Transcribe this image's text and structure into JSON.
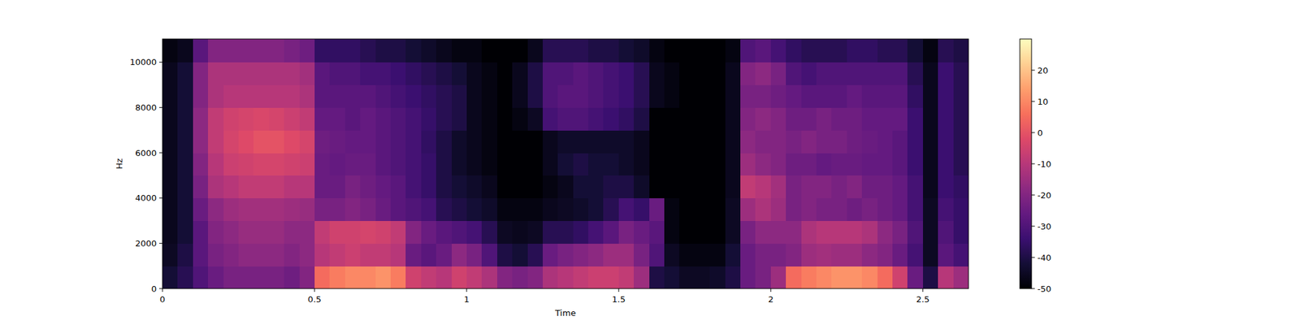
{
  "chart_data": {
    "type": "heatmap",
    "xlabel": "Time",
    "ylabel": "Hz",
    "x": [
      0.025,
      0.075,
      0.125,
      0.175,
      0.225,
      0.275,
      0.325,
      0.375,
      0.425,
      0.475,
      0.525,
      0.575,
      0.625,
      0.675,
      0.725,
      0.775,
      0.825,
      0.875,
      0.925,
      0.975,
      1.025,
      1.075,
      1.125,
      1.175,
      1.225,
      1.275,
      1.325,
      1.375,
      1.425,
      1.475,
      1.525,
      1.575,
      1.625,
      1.675,
      1.725,
      1.775,
      1.825,
      1.875,
      1.925,
      1.975,
      2.025,
      2.075,
      2.125,
      2.175,
      2.225,
      2.275,
      2.325,
      2.375,
      2.425,
      2.475,
      2.525,
      2.575,
      2.625
    ],
    "y": [
      500,
      1500,
      2500,
      3500,
      4500,
      5500,
      6500,
      7500,
      8500,
      9500,
      10500
    ],
    "cells": [
      [
        -42,
        -38,
        -30,
        -25,
        -22,
        -22,
        -22,
        -22,
        -24,
        -20,
        5,
        8,
        10,
        10,
        12,
        8,
        -5,
        -8,
        -10,
        -5,
        -8,
        -12,
        -20,
        -22,
        -20,
        -12,
        -10,
        -8,
        -6,
        -6,
        -8,
        -15,
        -40,
        -42,
        -45,
        -45,
        -44,
        -40,
        -25,
        -22,
        -15,
        5,
        8,
        10,
        12,
        12,
        10,
        5,
        -5,
        -25,
        -40,
        -10,
        -15
      ],
      [
        -45,
        -40,
        -28,
        -22,
        -20,
        -18,
        -18,
        -18,
        -20,
        -18,
        -10,
        -8,
        -6,
        -8,
        -8,
        -10,
        -25,
        -28,
        -25,
        -18,
        -22,
        -30,
        -40,
        -42,
        -38,
        -25,
        -22,
        -20,
        -18,
        -15,
        -15,
        -22,
        -30,
        -45,
        -48,
        -48,
        -48,
        -42,
        -25,
        -22,
        -22,
        -20,
        -15,
        -14,
        -15,
        -15,
        -18,
        -20,
        -25,
        -32,
        -45,
        -28,
        -32
      ],
      [
        -46,
        -42,
        -28,
        -20,
        -18,
        -16,
        -16,
        -16,
        -18,
        -18,
        -8,
        -5,
        -5,
        -4,
        -5,
        -8,
        -20,
        -25,
        -28,
        -30,
        -32,
        -38,
        -45,
        -46,
        -45,
        -38,
        -38,
        -36,
        -32,
        -28,
        -22,
        -25,
        -28,
        -48,
        -50,
        -50,
        -50,
        -45,
        -22,
        -18,
        -18,
        -18,
        -12,
        -10,
        -10,
        -10,
        -12,
        -18,
        -22,
        -30,
        -45,
        -30,
        -35
      ],
      [
        -46,
        -42,
        -25,
        -18,
        -15,
        -14,
        -14,
        -14,
        -15,
        -16,
        -22,
        -22,
        -20,
        -22,
        -25,
        -28,
        -30,
        -32,
        -38,
        -40,
        -42,
        -44,
        -48,
        -48,
        -48,
        -46,
        -45,
        -44,
        -42,
        -38,
        -32,
        -35,
        -25,
        -48,
        -50,
        -50,
        -50,
        -45,
        -15,
        -12,
        -15,
        -22,
        -20,
        -22,
        -22,
        -24,
        -22,
        -24,
        -26,
        -32,
        -45,
        -32,
        -35
      ],
      [
        -46,
        -42,
        -22,
        -12,
        -10,
        -8,
        -8,
        -8,
        -10,
        -10,
        -25,
        -25,
        -22,
        -24,
        -26,
        -28,
        -32,
        -35,
        -40,
        -42,
        -44,
        -46,
        -50,
        -50,
        -50,
        -48,
        -46,
        -42,
        -42,
        -40,
        -40,
        -44,
        -50,
        -50,
        -50,
        -50,
        -50,
        -46,
        -8,
        -10,
        -14,
        -22,
        -20,
        -20,
        -22,
        -20,
        -24,
        -24,
        -26,
        -32,
        -46,
        -34,
        -36
      ],
      [
        -46,
        -42,
        -20,
        -10,
        -6,
        -5,
        -4,
        -4,
        -5,
        -6,
        -25,
        -26,
        -25,
        -25,
        -28,
        -30,
        -32,
        -35,
        -40,
        -44,
        -46,
        -48,
        -50,
        -50,
        -50,
        -46,
        -42,
        -40,
        -42,
        -42,
        -44,
        -46,
        -50,
        -50,
        -50,
        -50,
        -50,
        -46,
        -15,
        -18,
        -20,
        -24,
        -24,
        -26,
        -25,
        -25,
        -26,
        -26,
        -28,
        -34,
        -46,
        -34,
        -38
      ],
      [
        -46,
        -42,
        -18,
        -8,
        -4,
        -2,
        0,
        0,
        -2,
        -4,
        -24,
        -25,
        -26,
        -26,
        -28,
        -30,
        -32,
        -36,
        -40,
        -44,
        -46,
        -48,
        -50,
        -50,
        -50,
        -46,
        -44,
        -44,
        -44,
        -44,
        -44,
        -46,
        -50,
        -50,
        -50,
        -50,
        -50,
        -46,
        -18,
        -20,
        -20,
        -22,
        -20,
        -22,
        -22,
        -24,
        -25,
        -26,
        -28,
        -34,
        -46,
        -34,
        -38
      ],
      [
        -46,
        -42,
        -18,
        -8,
        -5,
        -4,
        -3,
        -4,
        -6,
        -8,
        -26,
        -26,
        -28,
        -26,
        -28,
        -30,
        -32,
        -35,
        -38,
        -40,
        -46,
        -48,
        -50,
        -48,
        -45,
        -32,
        -30,
        -30,
        -32,
        -34,
        -36,
        -40,
        -50,
        -50,
        -50,
        -50,
        -50,
        -46,
        -20,
        -18,
        -20,
        -24,
        -24,
        -22,
        -24,
        -24,
        -26,
        -26,
        -26,
        -34,
        -46,
        -34,
        -38
      ],
      [
        -46,
        -42,
        -20,
        -12,
        -10,
        -10,
        -10,
        -10,
        -10,
        -12,
        -28,
        -28,
        -28,
        -28,
        -30,
        -32,
        -34,
        -36,
        -38,
        -40,
        -46,
        -48,
        -50,
        -46,
        -40,
        -30,
        -28,
        -28,
        -30,
        -32,
        -34,
        -38,
        -46,
        -48,
        -50,
        -50,
        -50,
        -46,
        -22,
        -22,
        -24,
        -26,
        -28,
        -28,
        -28,
        -26,
        -28,
        -28,
        -28,
        -36,
        -46,
        -34,
        -38
      ],
      [
        -46,
        -42,
        -20,
        -12,
        -12,
        -12,
        -12,
        -12,
        -12,
        -14,
        -28,
        -30,
        -30,
        -32,
        -32,
        -34,
        -36,
        -38,
        -40,
        -42,
        -46,
        -48,
        -50,
        -46,
        -40,
        -30,
        -30,
        -28,
        -30,
        -32,
        -34,
        -38,
        -46,
        -48,
        -50,
        -50,
        -50,
        -46,
        -20,
        -18,
        -22,
        -30,
        -32,
        -30,
        -30,
        -30,
        -30,
        -30,
        -30,
        -38,
        -46,
        -34,
        -38
      ],
      [
        -48,
        -46,
        -28,
        -20,
        -20,
        -20,
        -20,
        -20,
        -22,
        -24,
        -36,
        -36,
        -36,
        -38,
        -40,
        -40,
        -42,
        -44,
        -46,
        -48,
        -48,
        -50,
        -50,
        -50,
        -46,
        -38,
        -38,
        -38,
        -40,
        -40,
        -42,
        -44,
        -48,
        -50,
        -50,
        -50,
        -50,
        -48,
        -30,
        -28,
        -32,
        -36,
        -38,
        -38,
        -38,
        -36,
        -36,
        -38,
        -38,
        -42,
        -48,
        -38,
        -40
      ]
    ],
    "xlim": [
      0,
      2.65
    ],
    "ylim": [
      0,
      11025
    ],
    "xticks": [
      0,
      0.5,
      1,
      1.5,
      2,
      2.5
    ],
    "yticks": [
      0,
      2000,
      4000,
      6000,
      8000,
      10000
    ],
    "colorbar": {
      "range": [
        -50,
        30
      ],
      "ticks": [
        -50,
        -40,
        -30,
        -20,
        -10,
        0,
        10,
        20
      ]
    }
  }
}
